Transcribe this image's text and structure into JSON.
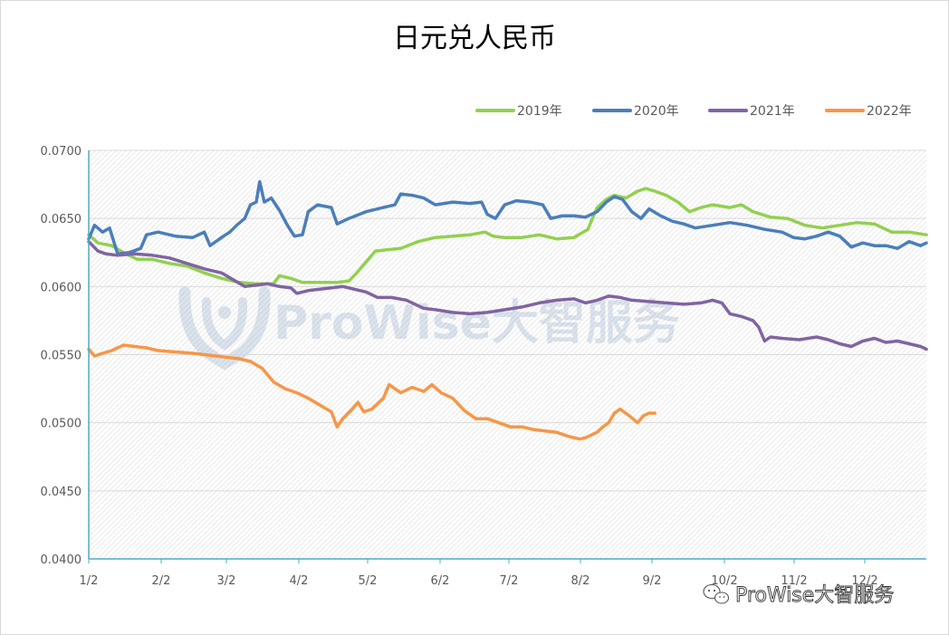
{
  "chart_data": {
    "type": "line",
    "title": "日元兑人民币",
    "xlabel": "",
    "ylabel": "",
    "ylim": [
      0.04,
      0.07
    ],
    "y_ticks": [
      "0.0700",
      "0.0650",
      "0.0600",
      "0.0550",
      "0.0500",
      "0.0450",
      "0.0400"
    ],
    "x_ticks": [
      "1/2",
      "2/2",
      "3/2",
      "4/2",
      "5/2",
      "6/2",
      "7/2",
      "8/2",
      "9/2",
      "10/2",
      "11/2",
      "12/2"
    ],
    "grid": true,
    "legend_position": "top-right",
    "series": [
      {
        "name": "2019年",
        "color": "#92d050",
        "points": [
          [
            0,
            0.0638
          ],
          [
            8,
            0.0632
          ],
          [
            20,
            0.063
          ],
          [
            30,
            0.0625
          ],
          [
            42,
            0.062
          ],
          [
            55,
            0.062
          ],
          [
            70,
            0.0617
          ],
          [
            85,
            0.0615
          ],
          [
            100,
            0.061
          ],
          [
            115,
            0.0606
          ],
          [
            130,
            0.0603
          ],
          [
            145,
            0.0602
          ],
          [
            160,
            0.0602
          ],
          [
            165,
            0.0608
          ],
          [
            175,
            0.0606
          ],
          [
            185,
            0.0603
          ],
          [
            200,
            0.0603
          ],
          [
            215,
            0.0603
          ],
          [
            225,
            0.0604
          ],
          [
            232,
            0.061
          ],
          [
            240,
            0.0618
          ],
          [
            248,
            0.0626
          ],
          [
            258,
            0.0627
          ],
          [
            270,
            0.0628
          ],
          [
            285,
            0.0633
          ],
          [
            300,
            0.0636
          ],
          [
            315,
            0.0637
          ],
          [
            330,
            0.0638
          ],
          [
            343,
            0.064
          ],
          [
            350,
            0.0637
          ],
          [
            360,
            0.0636
          ],
          [
            375,
            0.0636
          ],
          [
            390,
            0.0638
          ],
          [
            405,
            0.0635
          ],
          [
            420,
            0.0636
          ],
          [
            432,
            0.0642
          ],
          [
            440,
            0.0658
          ],
          [
            448,
            0.0664
          ],
          [
            455,
            0.0667
          ],
          [
            465,
            0.0665
          ],
          [
            475,
            0.067
          ],
          [
            482,
            0.0672
          ],
          [
            490,
            0.067
          ],
          [
            500,
            0.0667
          ],
          [
            510,
            0.0662
          ],
          [
            520,
            0.0655
          ],
          [
            530,
            0.0658
          ],
          [
            540,
            0.066
          ],
          [
            555,
            0.0658
          ],
          [
            565,
            0.066
          ],
          [
            575,
            0.0655
          ],
          [
            590,
            0.0651
          ],
          [
            605,
            0.065
          ],
          [
            620,
            0.0645
          ],
          [
            635,
            0.0643
          ],
          [
            650,
            0.0645
          ],
          [
            665,
            0.0647
          ],
          [
            680,
            0.0646
          ],
          [
            695,
            0.064
          ],
          [
            710,
            0.064
          ],
          [
            725,
            0.0638
          ]
        ]
      },
      {
        "name": "2020年",
        "color": "#4a7ebb",
        "points": [
          [
            0,
            0.0635
          ],
          [
            5,
            0.0645
          ],
          [
            12,
            0.064
          ],
          [
            18,
            0.0643
          ],
          [
            25,
            0.0624
          ],
          [
            35,
            0.0625
          ],
          [
            45,
            0.0628
          ],
          [
            50,
            0.0638
          ],
          [
            60,
            0.064
          ],
          [
            75,
            0.0637
          ],
          [
            90,
            0.0636
          ],
          [
            100,
            0.064
          ],
          [
            105,
            0.063
          ],
          [
            115,
            0.0636
          ],
          [
            122,
            0.064
          ],
          [
            128,
            0.0645
          ],
          [
            135,
            0.065
          ],
          [
            140,
            0.066
          ],
          [
            145,
            0.0662
          ],
          [
            148,
            0.0677
          ],
          [
            152,
            0.0662
          ],
          [
            158,
            0.0665
          ],
          [
            165,
            0.0656
          ],
          [
            172,
            0.0645
          ],
          [
            178,
            0.0637
          ],
          [
            185,
            0.0638
          ],
          [
            190,
            0.0655
          ],
          [
            198,
            0.066
          ],
          [
            210,
            0.0658
          ],
          [
            215,
            0.0646
          ],
          [
            225,
            0.065
          ],
          [
            240,
            0.0655
          ],
          [
            255,
            0.0658
          ],
          [
            265,
            0.066
          ],
          [
            270,
            0.0668
          ],
          [
            280,
            0.0667
          ],
          [
            290,
            0.0665
          ],
          [
            300,
            0.066
          ],
          [
            315,
            0.0662
          ],
          [
            330,
            0.0661
          ],
          [
            340,
            0.0662
          ],
          [
            345,
            0.0653
          ],
          [
            352,
            0.065
          ],
          [
            360,
            0.066
          ],
          [
            370,
            0.0663
          ],
          [
            382,
            0.0662
          ],
          [
            393,
            0.066
          ],
          [
            400,
            0.065
          ],
          [
            410,
            0.0652
          ],
          [
            420,
            0.0652
          ],
          [
            430,
            0.0651
          ],
          [
            440,
            0.0655
          ],
          [
            448,
            0.0662
          ],
          [
            455,
            0.0666
          ],
          [
            462,
            0.0664
          ],
          [
            470,
            0.0655
          ],
          [
            478,
            0.065
          ],
          [
            485,
            0.0657
          ],
          [
            495,
            0.0652
          ],
          [
            505,
            0.0648
          ],
          [
            515,
            0.0646
          ],
          [
            525,
            0.0643
          ],
          [
            540,
            0.0645
          ],
          [
            555,
            0.0647
          ],
          [
            570,
            0.0645
          ],
          [
            585,
            0.0642
          ],
          [
            600,
            0.064
          ],
          [
            610,
            0.0636
          ],
          [
            620,
            0.0635
          ],
          [
            630,
            0.0637
          ],
          [
            640,
            0.064
          ],
          [
            650,
            0.0637
          ],
          [
            660,
            0.0629
          ],
          [
            670,
            0.0632
          ],
          [
            680,
            0.063
          ],
          [
            690,
            0.063
          ],
          [
            700,
            0.0628
          ],
          [
            710,
            0.0633
          ],
          [
            720,
            0.063
          ],
          [
            725,
            0.0632
          ]
        ]
      },
      {
        "name": "2021年",
        "color": "#8064a2",
        "points": [
          [
            0,
            0.0633
          ],
          [
            8,
            0.0626
          ],
          [
            15,
            0.0624
          ],
          [
            25,
            0.0623
          ],
          [
            40,
            0.0624
          ],
          [
            55,
            0.0623
          ],
          [
            70,
            0.0621
          ],
          [
            85,
            0.0617
          ],
          [
            100,
            0.0613
          ],
          [
            115,
            0.061
          ],
          [
            125,
            0.0605
          ],
          [
            135,
            0.06
          ],
          [
            145,
            0.0601
          ],
          [
            155,
            0.0602
          ],
          [
            165,
            0.06
          ],
          [
            175,
            0.0599
          ],
          [
            180,
            0.0595
          ],
          [
            190,
            0.0597
          ],
          [
            200,
            0.0598
          ],
          [
            210,
            0.0599
          ],
          [
            220,
            0.06
          ],
          [
            230,
            0.0598
          ],
          [
            240,
            0.0596
          ],
          [
            250,
            0.0592
          ],
          [
            262,
            0.0592
          ],
          [
            275,
            0.059
          ],
          [
            290,
            0.0584
          ],
          [
            300,
            0.0583
          ],
          [
            315,
            0.0581
          ],
          [
            330,
            0.058
          ],
          [
            345,
            0.0581
          ],
          [
            360,
            0.0583
          ],
          [
            375,
            0.0585
          ],
          [
            390,
            0.0588
          ],
          [
            405,
            0.059
          ],
          [
            420,
            0.0591
          ],
          [
            430,
            0.0588
          ],
          [
            440,
            0.059
          ],
          [
            450,
            0.0593
          ],
          [
            460,
            0.0592
          ],
          [
            470,
            0.059
          ],
          [
            485,
            0.0589
          ],
          [
            500,
            0.0588
          ],
          [
            515,
            0.0587
          ],
          [
            530,
            0.0588
          ],
          [
            540,
            0.059
          ],
          [
            548,
            0.0588
          ],
          [
            555,
            0.058
          ],
          [
            565,
            0.0578
          ],
          [
            575,
            0.0575
          ],
          [
            580,
            0.057
          ],
          [
            585,
            0.056
          ],
          [
            590,
            0.0563
          ],
          [
            600,
            0.0562
          ],
          [
            615,
            0.0561
          ],
          [
            630,
            0.0563
          ],
          [
            640,
            0.0561
          ],
          [
            650,
            0.0558
          ],
          [
            660,
            0.0556
          ],
          [
            670,
            0.056
          ],
          [
            680,
            0.0562
          ],
          [
            690,
            0.0559
          ],
          [
            700,
            0.056
          ],
          [
            710,
            0.0558
          ],
          [
            720,
            0.0556
          ],
          [
            725,
            0.0554
          ]
        ]
      },
      {
        "name": "2022年",
        "color": "#f79646",
        "points": [
          [
            0,
            0.0554
          ],
          [
            5,
            0.0549
          ],
          [
            12,
            0.0551
          ],
          [
            20,
            0.0553
          ],
          [
            30,
            0.0557
          ],
          [
            40,
            0.0556
          ],
          [
            50,
            0.0555
          ],
          [
            60,
            0.0553
          ],
          [
            75,
            0.0552
          ],
          [
            90,
            0.0551
          ],
          [
            100,
            0.055
          ],
          [
            110,
            0.0549
          ],
          [
            120,
            0.0548
          ],
          [
            130,
            0.0547
          ],
          [
            140,
            0.0545
          ],
          [
            150,
            0.054
          ],
          [
            160,
            0.053
          ],
          [
            170,
            0.0525
          ],
          [
            180,
            0.0522
          ],
          [
            190,
            0.0518
          ],
          [
            200,
            0.0513
          ],
          [
            210,
            0.0508
          ],
          [
            215,
            0.0497
          ],
          [
            220,
            0.0503
          ],
          [
            228,
            0.051
          ],
          [
            233,
            0.0515
          ],
          [
            238,
            0.0508
          ],
          [
            245,
            0.051
          ],
          [
            255,
            0.0518
          ],
          [
            260,
            0.0528
          ],
          [
            270,
            0.0522
          ],
          [
            280,
            0.0526
          ],
          [
            290,
            0.0523
          ],
          [
            297,
            0.0528
          ],
          [
            305,
            0.0522
          ],
          [
            315,
            0.0518
          ],
          [
            325,
            0.0509
          ],
          [
            335,
            0.0503
          ],
          [
            345,
            0.0503
          ],
          [
            355,
            0.05
          ],
          [
            365,
            0.0497
          ],
          [
            375,
            0.0497
          ],
          [
            385,
            0.0495
          ],
          [
            395,
            0.0494
          ],
          [
            405,
            0.0493
          ],
          [
            415,
            0.049
          ],
          [
            425,
            0.0488
          ],
          [
            430,
            0.0489
          ],
          [
            440,
            0.0493
          ],
          [
            445,
            0.0497
          ],
          [
            450,
            0.05
          ],
          [
            455,
            0.0507
          ],
          [
            460,
            0.051
          ],
          [
            468,
            0.0505
          ],
          [
            475,
            0.05
          ],
          [
            480,
            0.0505
          ],
          [
            485,
            0.0507
          ],
          [
            490,
            0.0507
          ]
        ]
      }
    ]
  },
  "watermark": {
    "text": "ProWise大智服务"
  },
  "footer_credit": {
    "text": "ProWise大智服务",
    "icon": "wechat-icon"
  }
}
